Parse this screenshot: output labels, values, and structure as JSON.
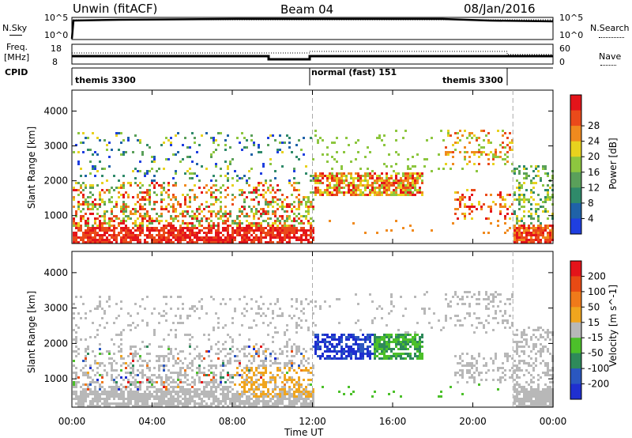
{
  "header": {
    "radar": "Unwin (fitACF)",
    "beam": "Beam 04",
    "date": "08/Jan/2016"
  },
  "panels_top": {
    "nsky_label": "N.Sky",
    "nsky_ticks": [
      "10^5",
      "10^0"
    ],
    "nsearch_label": "N.Search",
    "nsearch_ticks": [
      "10^5",
      "10^0"
    ],
    "freq_label": "Freq.",
    "freq_unit": "[MHz]",
    "freq_ticks": [
      "18",
      "8"
    ],
    "nave_label": "Nave",
    "nave_ticks": [
      "60",
      "0"
    ],
    "cpid_label": "CPID",
    "cpid_segments": [
      {
        "text": "themis 3300"
      },
      {
        "text": "normal (fast) 151"
      },
      {
        "text": "themis 3300"
      }
    ]
  },
  "chart_data": [
    {
      "type": "heatmap",
      "name": "power",
      "xlabel": "",
      "ylabel": "Slant Range [km]",
      "xlim": [
        0,
        24
      ],
      "ylim": [
        200,
        4600
      ],
      "yticks": [
        "1000",
        "2000",
        "3000",
        "4000"
      ],
      "colorbar": {
        "label": "Power [dB]",
        "ticks": [
          "4",
          "8",
          "12",
          "16",
          "20",
          "24",
          "28"
        ],
        "colors": [
          "#1f3fe0",
          "#1f62a8",
          "#2f8a6a",
          "#5aa05a",
          "#8dc63f",
          "#e8d21e",
          "#f08a1e",
          "#ea4a1a",
          "#e4141a"
        ]
      }
    },
    {
      "type": "heatmap",
      "name": "velocity",
      "xlabel": "Time UT",
      "ylabel": "Slant Range [km]",
      "xlim": [
        0,
        24
      ],
      "ylim": [
        200,
        4600
      ],
      "yticks": [
        "1000",
        "2000",
        "3000",
        "4000"
      ],
      "xticks": [
        "00:00",
        "04:00",
        "08:00",
        "12:00",
        "16:00",
        "20:00",
        "00:00"
      ],
      "colorbar": {
        "label": "Velocity [m s^-1]",
        "ticks": [
          "200",
          "100",
          "50",
          "15",
          "-15",
          "-50",
          "-100",
          "-200"
        ],
        "colors": [
          "#1f2fd0",
          "#2a57c0",
          "#2e8a5a",
          "#4cc02a",
          "#b8b8b8",
          "#f0a51e",
          "#f07a1a",
          "#e84a14",
          "#e4141a"
        ]
      }
    }
  ]
}
